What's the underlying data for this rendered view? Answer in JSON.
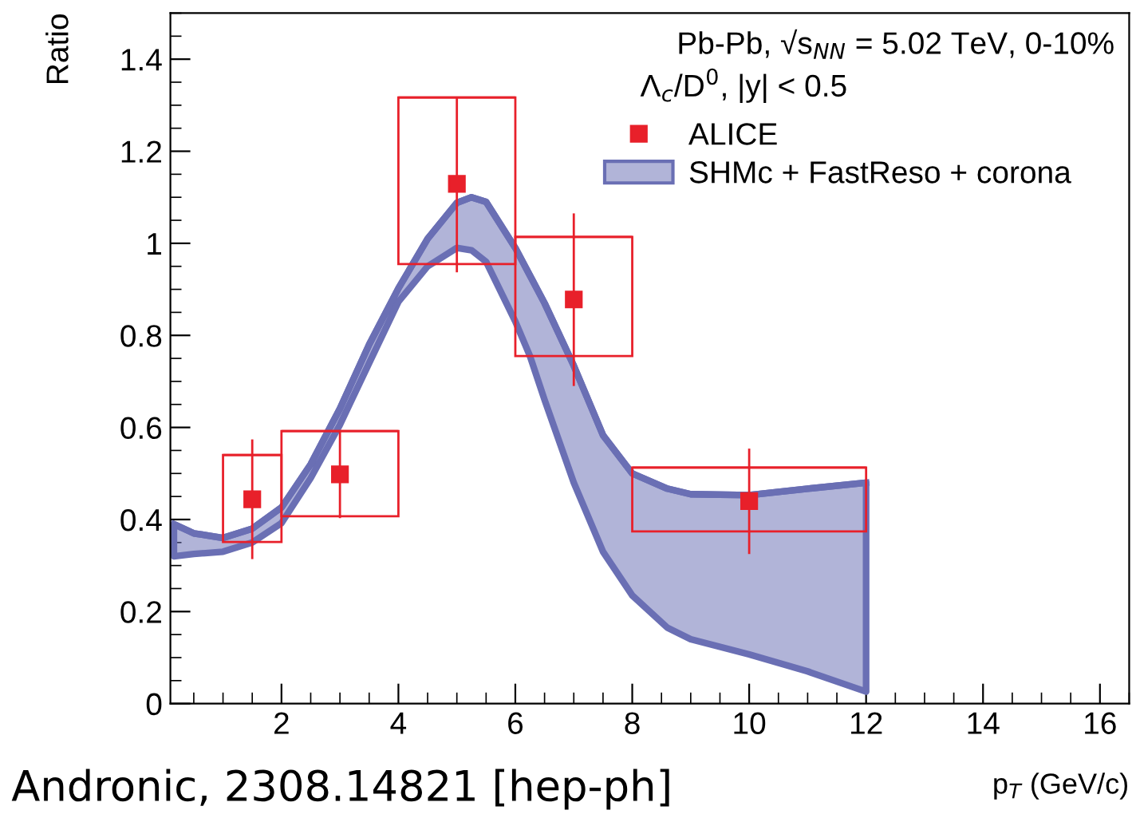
{
  "chart_data": {
    "type": "scatter",
    "xlabel": "p$_{T}$ (GeV/c)",
    "ylabel": "Ratio",
    "xlim": [
      0.1,
      16.5
    ],
    "xticks": [
      2,
      4,
      6,
      8,
      10,
      12,
      14,
      16
    ],
    "ylim": [
      0,
      1.5
    ],
    "yticks": [
      0,
      0.2,
      0.4,
      0.6,
      0.8,
      1,
      1.2,
      1.4
    ],
    "grid": false,
    "legend": "top right",
    "annotations": [
      "Pb-Pb, √s$_{NN}$ = 5.02 TeV, 0-10%",
      "Λ$_{c}$/D$^{0}$, |y| < 0.5",
      "Andronic, 2308.14821 [hep-ph]"
    ],
    "series": [
      {
        "type": "line",
        "name": "SHMc + FastReso + corona",
        "color": "#6a6fb4",
        "x": [
          0.16,
          0.5,
          1,
          1.5,
          2,
          2.5,
          3,
          3.5,
          4,
          4.5,
          5,
          5.25,
          5.5,
          6,
          6.25,
          6.5,
          7,
          7.5,
          8,
          8.6,
          9,
          10,
          11,
          12
        ],
        "values": [
          0.39,
          0.37,
          0.36,
          0.38,
          0.426,
          0.52,
          0.641,
          0.78,
          0.902,
          1.01,
          1.088,
          1.1,
          1.09,
          0.99,
          0.93,
          0.87,
          0.734,
          0.583,
          0.5,
          0.467,
          0.455,
          0.453,
          0.467,
          0.48
        ],
        "lower": [
          0.32,
          0.325,
          0.33,
          0.35,
          0.392,
          0.49,
          0.606,
          0.74,
          0.873,
          0.95,
          0.99,
          0.985,
          0.96,
          0.83,
          0.755,
          0.66,
          0.48,
          0.33,
          0.235,
          0.165,
          0.14,
          0.107,
          0.07,
          0.026
        ],
        "upper": [
          0.39,
          0.37,
          0.36,
          0.38,
          0.426,
          0.52,
          0.641,
          0.78,
          0.902,
          1.01,
          1.088,
          1.1,
          1.09,
          0.99,
          0.93,
          0.87,
          0.734,
          0.583,
          0.5,
          0.467,
          0.455,
          0.453,
          0.467,
          0.48
        ]
      },
      {
        "type": "bar",
        "color": "#e8202a",
        "x": [
          1.5,
          3,
          5,
          7,
          10
        ],
        "xerrors": [
          0.5,
          1,
          1,
          1,
          2
        ],
        "base": [
          0.351,
          0.407,
          0.955,
          0.755,
          0.374
        ],
        "values": [
          0.189,
          0.185,
          0.362,
          0.259,
          0.139
        ]
      },
      {
        "type": "scatter",
        "name": "ALICE",
        "color": "#e8202a",
        "marker": "square",
        "x": [
          1.5,
          3,
          5,
          7,
          10
        ],
        "values": [
          0.444,
          0.498,
          1.129,
          0.878,
          0.44
        ],
        "errors": [
          [
            0.314,
            0.574
          ],
          [
            0.403,
            0.592
          ],
          [
            0.937,
            1.317
          ],
          [
            0.69,
            1.065
          ],
          [
            0.325,
            0.554
          ]
        ]
      }
    ]
  }
}
